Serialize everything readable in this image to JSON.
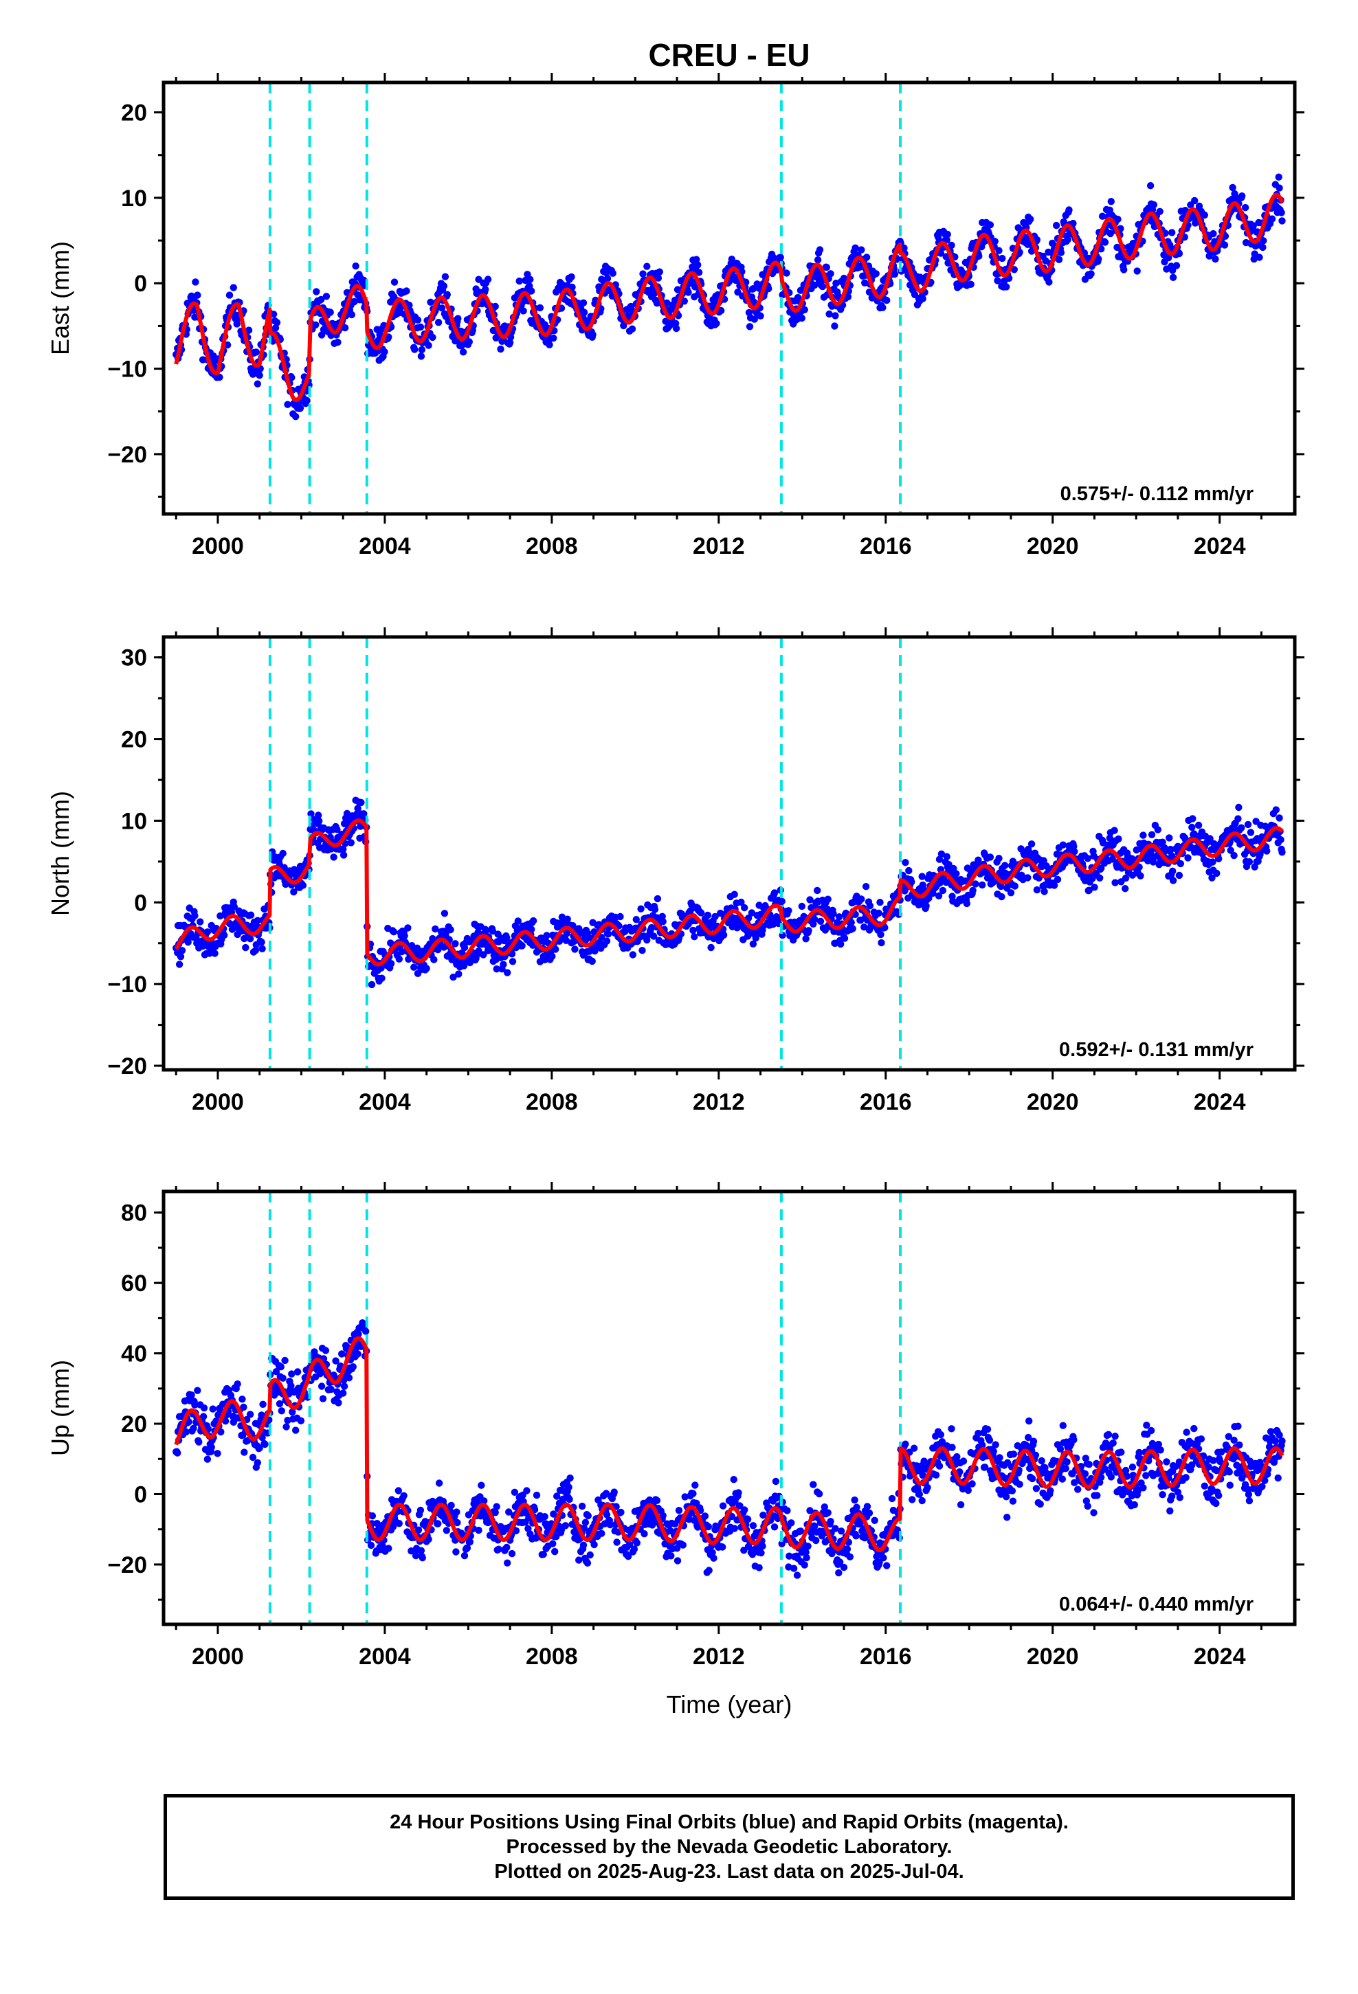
{
  "title": "CREU - EU",
  "xlabel": "Time (year)",
  "caption": {
    "line1": "24 Hour Positions Using Final Orbits (blue) and Rapid Orbits (magenta).",
    "line2": "Processed by the Nevada Geodetic Laboratory.",
    "line3": "Plotted on 2025-Aug-23. Last data on 2025-Jul-04."
  },
  "colors": {
    "data": "#0000ff",
    "model": "#ff0000",
    "events": "#00e5e5",
    "frame": "#000000"
  },
  "chart_data": [
    {
      "type": "scatter",
      "title": "CREU - EU",
      "xlabel": "",
      "ylabel": "East (mm)",
      "xlim": [
        1998.7,
        2025.8
      ],
      "ylim": [
        -27,
        23.5
      ],
      "xticks": [
        2000,
        2004,
        2008,
        2012,
        2016,
        2020,
        2024
      ],
      "yticks": [
        -20,
        -10,
        0,
        10,
        20
      ],
      "event_lines": [
        2001.25,
        2002.2,
        2003.57,
        2013.5,
        2016.35
      ],
      "rate": "0.575+/- 0.112 mm/yr",
      "series": [
        {
          "x": [
            1999.0,
            1999.5,
            2000.0,
            2000.5,
            2001.0,
            2001.24,
            2001.26,
            2001.8,
            2002.19,
            2002.21,
            2003.0,
            2003.56,
            2003.58,
            2004,
            2006,
            2008,
            2010,
            2012,
            2013.49,
            2013.51,
            2016,
            2016.34,
            2016.36,
            2018,
            2020,
            2022,
            2024,
            2025.5
          ],
          "y": [
            -8,
            -4,
            -9,
            -4,
            -8,
            -5,
            -8,
            -11,
            -12,
            -6,
            -2.5,
            -3,
            -6,
            -4.5,
            -4,
            -3.5,
            -2,
            -1,
            0,
            -1,
            1,
            2,
            1,
            3,
            4,
            5.5,
            6.5,
            8
          ]
        }
      ]
    },
    {
      "type": "scatter",
      "xlabel": "",
      "ylabel": "North (mm)",
      "xlim": [
        1998.7,
        2025.8
      ],
      "ylim": [
        -20.5,
        32.5
      ],
      "xticks": [
        2000,
        2004,
        2008,
        2012,
        2016,
        2020,
        2024
      ],
      "yticks": [
        -20,
        -10,
        0,
        10,
        20,
        30
      ],
      "event_lines": [
        2001.25,
        2002.2,
        2003.57,
        2013.5,
        2016.35
      ],
      "rate": "0.592+/- 0.131 mm/yr",
      "series": [
        {
          "x": [
            1999.0,
            2000.0,
            2001.24,
            2001.26,
            2002.19,
            2002.21,
            2003.0,
            2003.56,
            2003.58,
            2006,
            2008,
            2010,
            2012,
            2013.49,
            2013.51,
            2016,
            2016.34,
            2016.36,
            2018,
            2020,
            2022,
            2024,
            2025.5
          ],
          "y": [
            -5,
            -3,
            -2.5,
            3,
            4,
            7,
            8.5,
            9,
            -6.5,
            -5.5,
            -4.5,
            -3.5,
            -2.5,
            -1.5,
            -2.5,
            -1.5,
            -0.5,
            1.5,
            3,
            4.5,
            5.5,
            7,
            8
          ]
        }
      ]
    },
    {
      "type": "scatter",
      "xlabel": "Time (year)",
      "ylabel": "Up (mm)",
      "xlim": [
        1998.7,
        2025.8
      ],
      "ylim": [
        -37,
        86
      ],
      "xticks": [
        2000,
        2004,
        2008,
        2012,
        2016,
        2020,
        2024
      ],
      "yticks": [
        -20,
        0,
        20,
        40,
        60,
        80
      ],
      "event_lines": [
        2001.25,
        2002.2,
        2003.57,
        2013.5,
        2016.35
      ],
      "rate": "0.064+/- 0.440 mm/yr",
      "series": [
        {
          "x": [
            1999.0,
            2000.0,
            2001.24,
            2001.26,
            2002.19,
            2002.21,
            2003.0,
            2003.56,
            2003.58,
            2006,
            2008,
            2010,
            2012,
            2013.49,
            2013.51,
            2016,
            2016.34,
            2016.36,
            2018,
            2020,
            2022,
            2024,
            2025.5
          ],
          "y": [
            17,
            22,
            20,
            27,
            31,
            32,
            38,
            40,
            -8,
            -8,
            -8,
            -8,
            -9,
            -9,
            -10,
            -11,
            -12,
            8,
            8,
            7,
            7,
            8,
            8
          ]
        }
      ]
    }
  ]
}
